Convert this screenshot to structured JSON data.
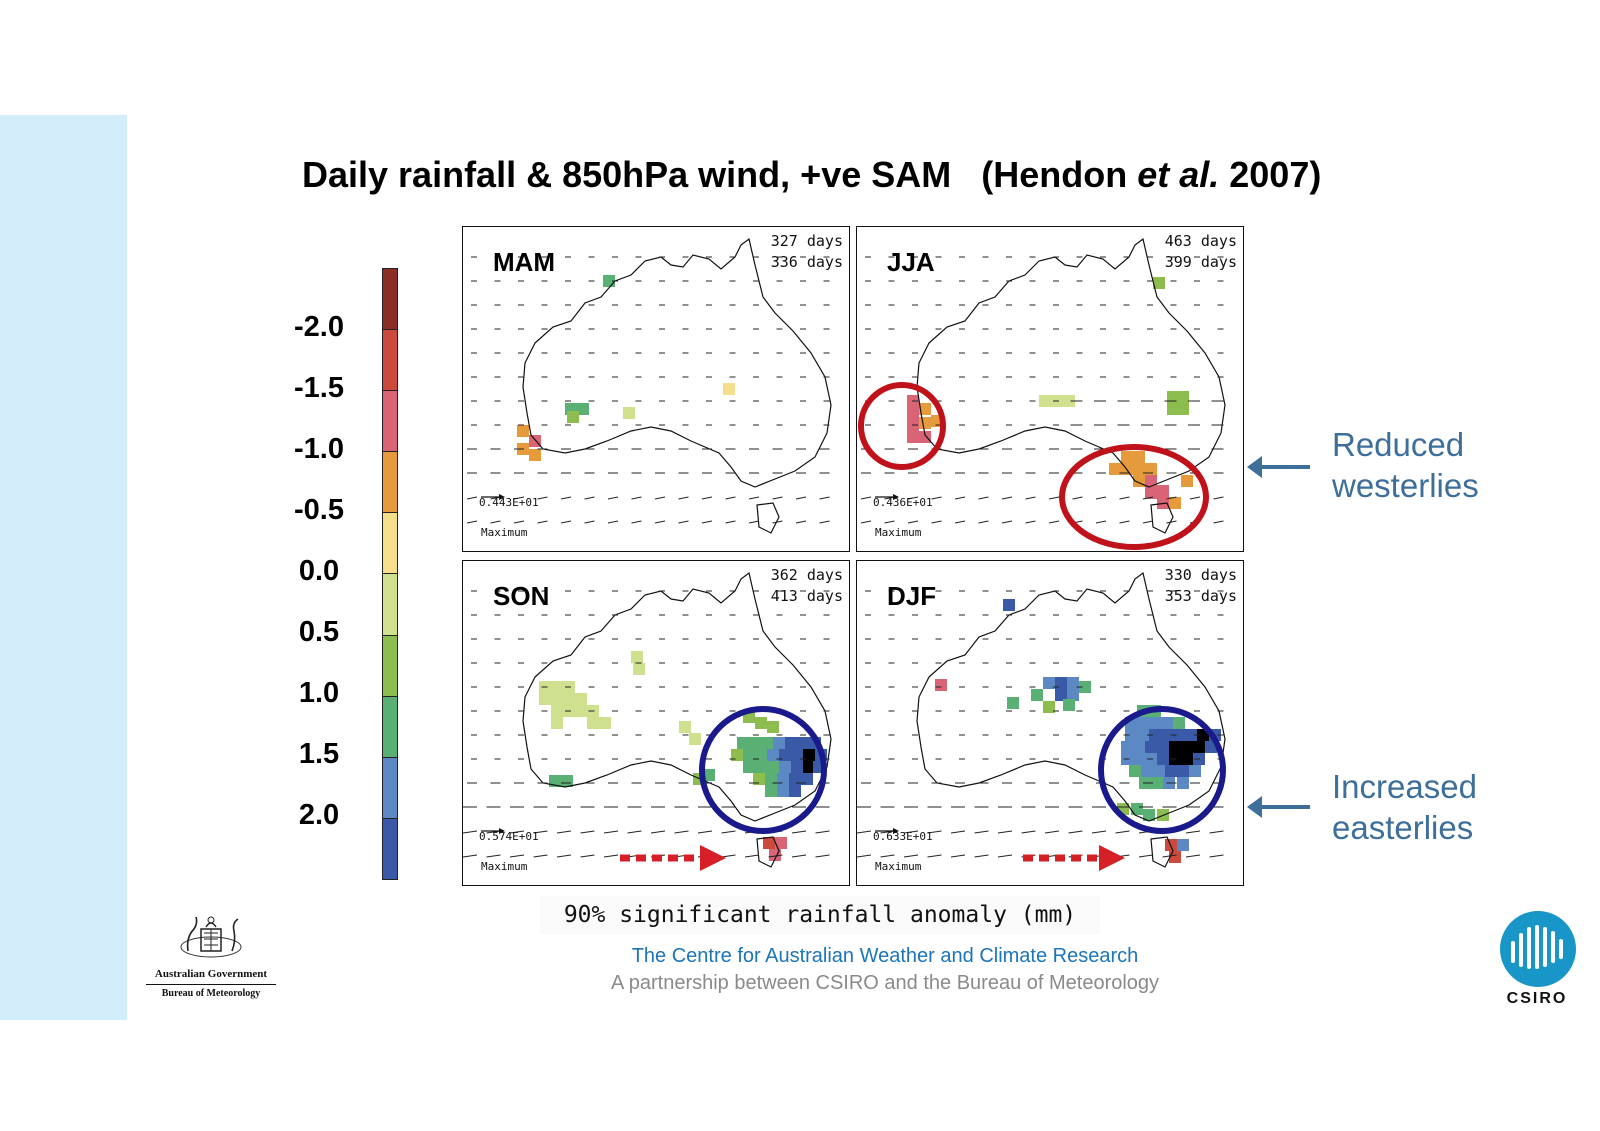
{
  "slide": {
    "title_main": "Daily rainfall & 850hPa wind, +ve SAM",
    "title_open": "(Hendon ",
    "title_italic": "et al.",
    "title_close": " 2007)"
  },
  "colorbar": {
    "colors": [
      "#8a2e26",
      "#cc4a3c",
      "#d86475",
      "#e59a3c",
      "#f5df8c",
      "#cfe18e",
      "#8cbd4e",
      "#5aaf74",
      "#5c88c4",
      "#3a5aa8"
    ],
    "labels": [
      "-2.0",
      "-1.5",
      "-1.0",
      "-0.5",
      "0.0",
      "0.5",
      "1.0",
      "1.5",
      "2.0"
    ]
  },
  "panels": [
    {
      "season": "MAM",
      "days_1": "327 days",
      "days_2": "336 days",
      "max_value": "0.443E+01",
      "max_label": "Maximum"
    },
    {
      "season": "JJA",
      "days_1": "463 days",
      "days_2": "399 days",
      "max_value": "0.436E+01",
      "max_label": "Maximum"
    },
    {
      "season": "SON",
      "days_1": "362 days",
      "days_2": "413 days",
      "max_value": "0.574E+01",
      "max_label": "Maximum"
    },
    {
      "season": "DJF",
      "days_1": "330 days",
      "days_2": "353 days",
      "max_value": "0.633E+01",
      "max_label": "Maximum"
    }
  ],
  "caption": "90% significant rainfall anomaly (mm)",
  "annotations": {
    "reduced_line1": "Reduced",
    "reduced_line2": "westerlies",
    "increased_line1": "Increased",
    "increased_line2": "easterlies",
    "reduced_color": "#c0121b",
    "increased_color": "#1a1a8c"
  },
  "footer": {
    "centre": "The Centre for Australian Weather and Climate Research",
    "partnership": "A partnership between CSIRO and the Bureau of Meteorology",
    "gov_line1": "Australian Government",
    "gov_line2": "Bureau of Meteorology",
    "csiro": "CSIRO"
  }
}
